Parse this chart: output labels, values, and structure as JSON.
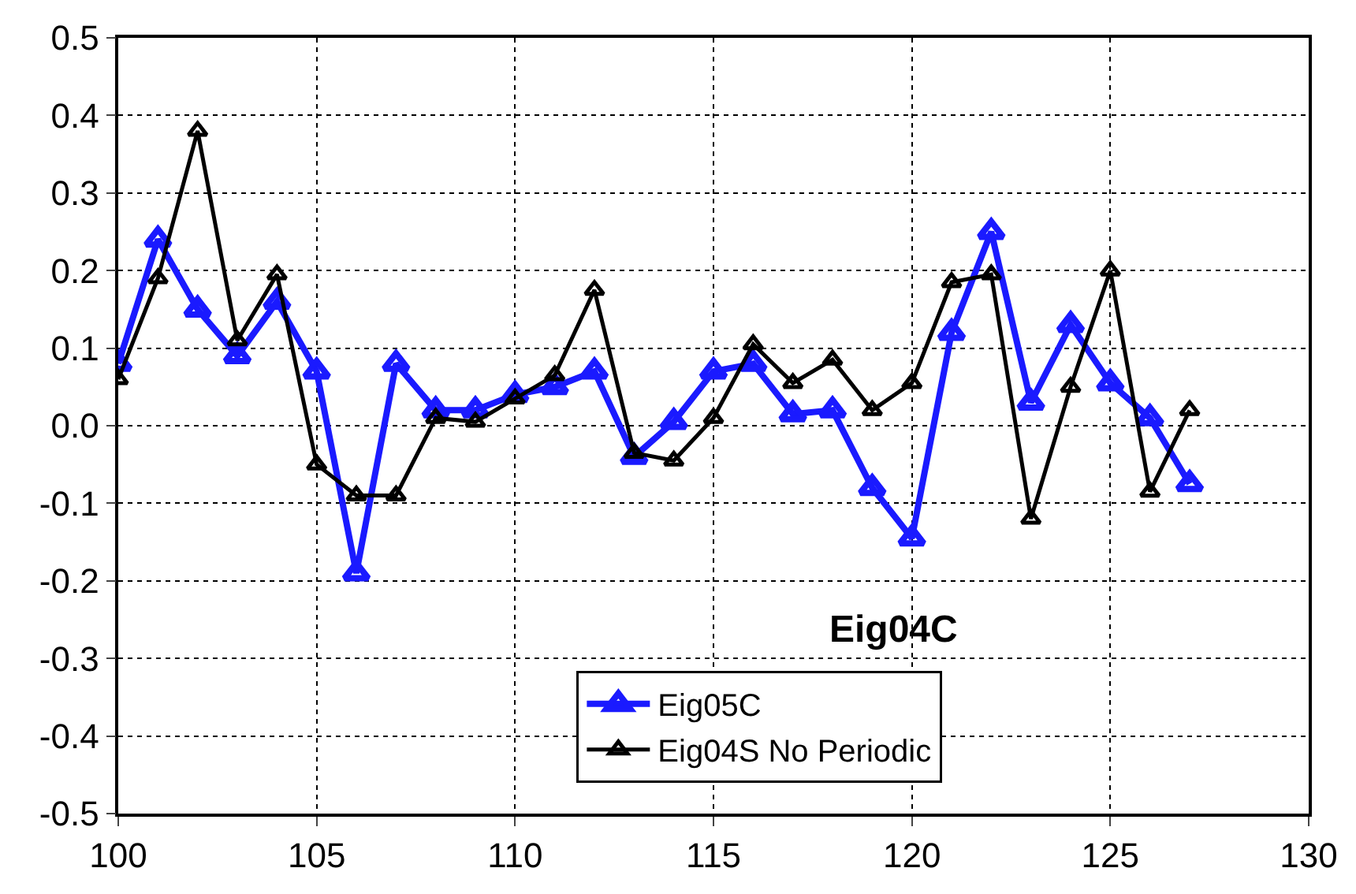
{
  "chart_data": {
    "type": "line",
    "x": [
      100,
      101,
      102,
      103,
      104,
      105,
      106,
      107,
      108,
      109,
      110,
      111,
      112,
      113,
      114,
      115,
      116,
      117,
      118,
      119,
      120,
      121,
      122,
      123,
      124,
      125,
      126,
      127
    ],
    "series": [
      {
        "name": "Eig05C",
        "color": "#1a1aff",
        "values": [
          0.08,
          0.24,
          0.15,
          0.09,
          0.16,
          0.07,
          -0.19,
          0.08,
          0.02,
          0.02,
          0.04,
          0.05,
          0.07,
          -0.04,
          0.005,
          0.07,
          0.08,
          0.015,
          0.02,
          -0.08,
          -0.145,
          0.12,
          0.25,
          0.03,
          0.13,
          0.055,
          0.01,
          -0.075
        ]
      },
      {
        "name": "Eig04S No Periodic",
        "color": "#000000",
        "values": [
          0.06,
          0.19,
          0.38,
          0.11,
          0.195,
          -0.05,
          -0.09,
          -0.09,
          0.01,
          0.005,
          0.035,
          0.065,
          0.175,
          -0.035,
          -0.045,
          0.01,
          0.105,
          0.055,
          0.085,
          0.02,
          0.055,
          0.185,
          0.195,
          -0.12,
          0.05,
          0.2,
          -0.085,
          0.02
        ]
      }
    ],
    "annotations": [
      "Eig04C"
    ],
    "xlim": [
      100,
      130
    ],
    "xticks": [
      100,
      105,
      110,
      115,
      120,
      125,
      130
    ],
    "ylim": [
      -0.5,
      0.5
    ],
    "yticks": [
      -0.5,
      -0.4,
      -0.3,
      -0.2,
      -0.1,
      {
        "value": 0,
        "label": "0.0"
      },
      0.1,
      0.2,
      0.3,
      0.4,
      0.5
    ],
    "grid": true,
    "legend": "bottom",
    "marker": "triangle",
    "line_style": "solid"
  }
}
